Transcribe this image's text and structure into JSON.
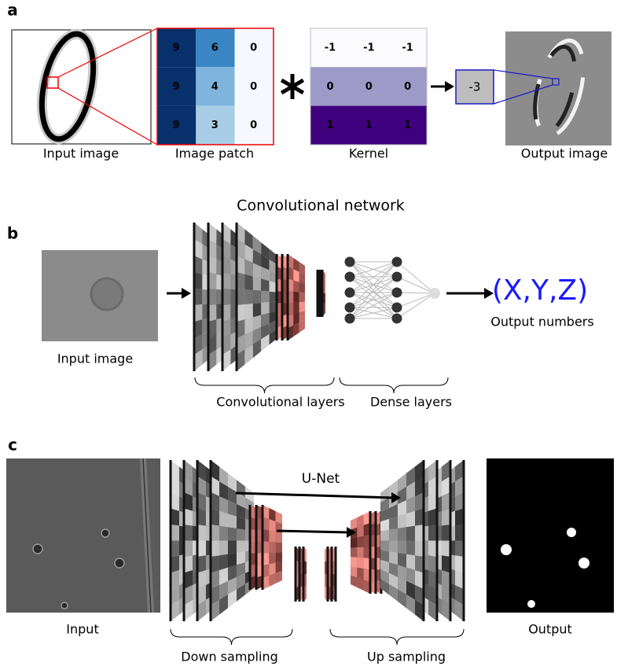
{
  "panel_a": {
    "label": "a",
    "input_caption": "Input image",
    "patch": {
      "caption": "Image patch",
      "cells": [
        [
          9,
          6,
          0
        ],
        [
          9,
          4,
          0
        ],
        [
          9,
          3,
          0
        ]
      ]
    },
    "kernel": {
      "caption": "Kernel",
      "cells": [
        [
          -1,
          -1,
          -1
        ],
        [
          0,
          0,
          0
        ],
        [
          1,
          1,
          1
        ]
      ]
    },
    "result": -3,
    "output_caption": "Output image"
  },
  "panel_b": {
    "label": "b",
    "title": "Convolutional network",
    "input_caption": "Input image",
    "output": "(X,Y,Z)",
    "output_caption": "Output numbers",
    "brackets": [
      "Convolutional layers",
      "Dense layers"
    ]
  },
  "panel_c": {
    "label": "c",
    "title": "U-Net",
    "input_caption": "Input",
    "output_caption": "Output",
    "brackets": [
      "Down sampling",
      "Up sampling"
    ]
  }
}
